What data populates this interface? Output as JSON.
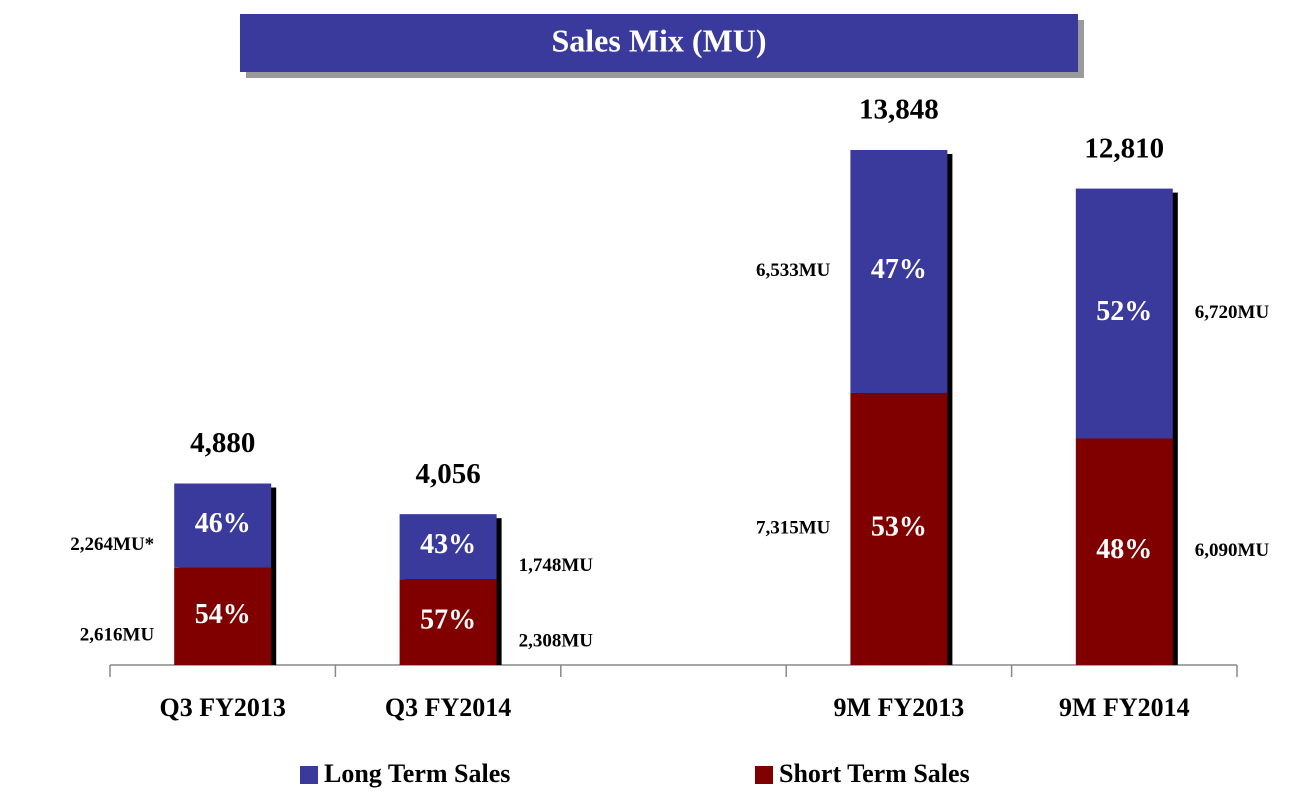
{
  "chart_data": {
    "type": "stacked_bar",
    "title": "Sales Mix (MU)",
    "categories": [
      "Q3 FY2013",
      "Q3 FY2014",
      null,
      "9M FY2013",
      "9M FY2014"
    ],
    "series": [
      {
        "name": "Long Term Sales",
        "color": "#3a3a9c",
        "values": [
          2264,
          1748,
          null,
          6533,
          6720
        ],
        "value_labels": [
          "2,264MU*",
          "1,748MU",
          null,
          "6,533MU",
          "6,720MU"
        ],
        "share_labels": [
          "46%",
          "43%",
          null,
          "47%",
          "52%"
        ]
      },
      {
        "name": "Short Term Sales",
        "color": "#800000",
        "values": [
          2616,
          2308,
          null,
          7315,
          6090
        ],
        "value_labels": [
          "2,616MU",
          "2,308MU",
          null,
          "7,315MU",
          "6,090MU"
        ],
        "share_labels": [
          "54%",
          "57%",
          null,
          "53%",
          "48%"
        ]
      }
    ],
    "totals": [
      4880,
      4056,
      null,
      13848,
      12810
    ],
    "total_labels": [
      "4,880",
      "4,056",
      null,
      "13,848",
      "12,810"
    ]
  }
}
